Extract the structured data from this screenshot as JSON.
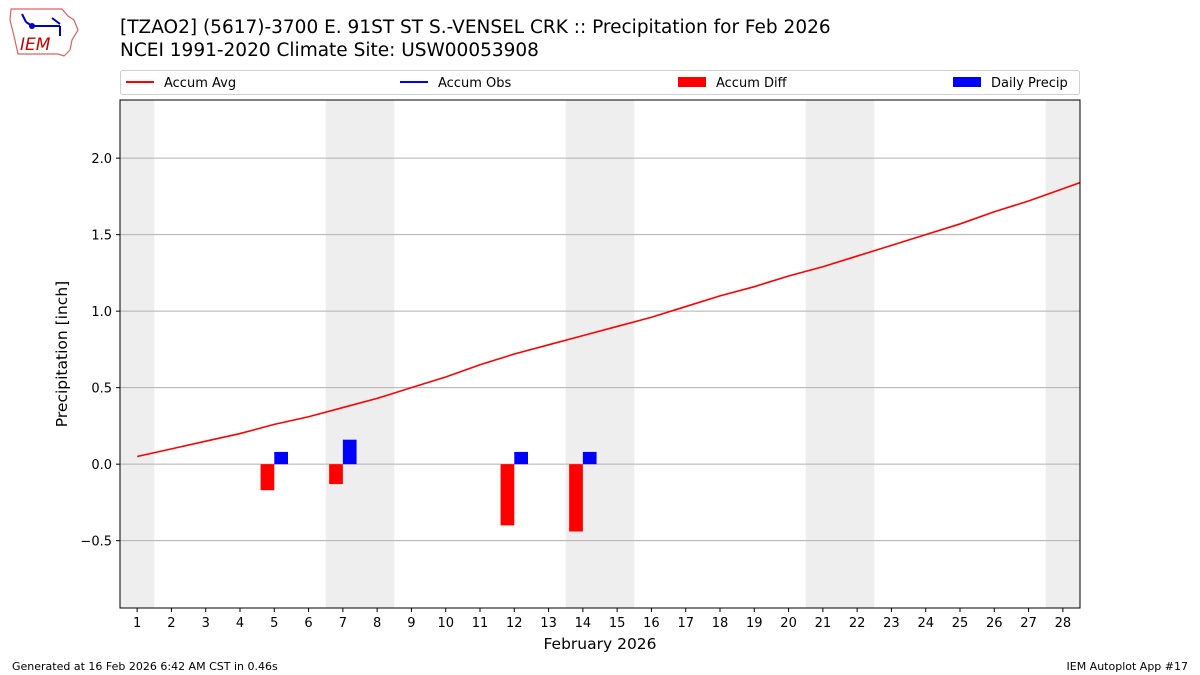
{
  "title_line1": "[TZAO2] (5617)-3700 E. 91ST ST S.-VENSEL CRK :: Precipitation for Feb 2026",
  "title_line2": "NCEI 1991-2020 Climate Site: USW00053908",
  "logo_text": "IEM",
  "footer_left": "Generated at 16 Feb 2026 6:42 AM CST in 0.46s",
  "footer_right": "IEM Autoplot App #17",
  "chart_data": {
    "type": "bar",
    "xlabel": "February 2026",
    "ylabel": "Precipitation [inch]",
    "xlim": [
      0.5,
      28.5
    ],
    "ylim": [
      -0.94,
      2.38
    ],
    "yticks": [
      -0.5,
      0.0,
      0.5,
      1.0,
      1.5,
      2.0
    ],
    "ytick_labels": [
      "−0.5",
      "0.0",
      "0.5",
      "1.0",
      "1.5",
      "2.0"
    ],
    "xticks": [
      1,
      2,
      3,
      4,
      5,
      6,
      7,
      8,
      9,
      10,
      11,
      12,
      13,
      14,
      15,
      16,
      17,
      18,
      19,
      20,
      21,
      22,
      23,
      24,
      25,
      26,
      27,
      28
    ],
    "grid": "horizontal",
    "weekend_shading": [
      [
        0.5,
        1.5
      ],
      [
        6.5,
        8.5
      ],
      [
        13.5,
        15.5
      ],
      [
        20.5,
        22.5
      ],
      [
        27.5,
        28.5
      ]
    ],
    "legend_placement": "top",
    "legend": [
      {
        "label": "Accum Avg",
        "kind": "line",
        "color": "#ff0000"
      },
      {
        "label": "Accum Obs",
        "kind": "line",
        "color": "#0000ff"
      },
      {
        "label": "Accum Diff",
        "kind": "bar",
        "color": "#ff0000"
      },
      {
        "label": "Daily Precip",
        "kind": "bar",
        "color": "#0000ff"
      }
    ],
    "accum_avg": {
      "x": [
        1,
        2,
        3,
        4,
        5,
        6,
        7,
        8,
        9,
        10,
        11,
        12,
        13,
        14,
        15,
        16,
        17,
        18,
        19,
        20,
        21,
        22,
        23,
        24,
        25,
        26,
        27,
        28,
        29
      ],
      "values": [
        0.05,
        0.1,
        0.15,
        0.2,
        0.26,
        0.31,
        0.37,
        0.43,
        0.5,
        0.57,
        0.65,
        0.72,
        0.78,
        0.84,
        0.9,
        0.96,
        1.03,
        1.1,
        1.16,
        1.23,
        1.29,
        1.36,
        1.43,
        1.5,
        1.57,
        1.65,
        1.72,
        1.8,
        1.88
      ]
    },
    "accum_diff": {
      "x": [
        5,
        7,
        12,
        14
      ],
      "values": [
        -0.17,
        -0.13,
        -0.4,
        -0.44
      ]
    },
    "daily_precip": {
      "x": [
        5,
        7,
        12,
        14
      ],
      "values": [
        0.08,
        0.16,
        0.08,
        0.08
      ]
    }
  }
}
